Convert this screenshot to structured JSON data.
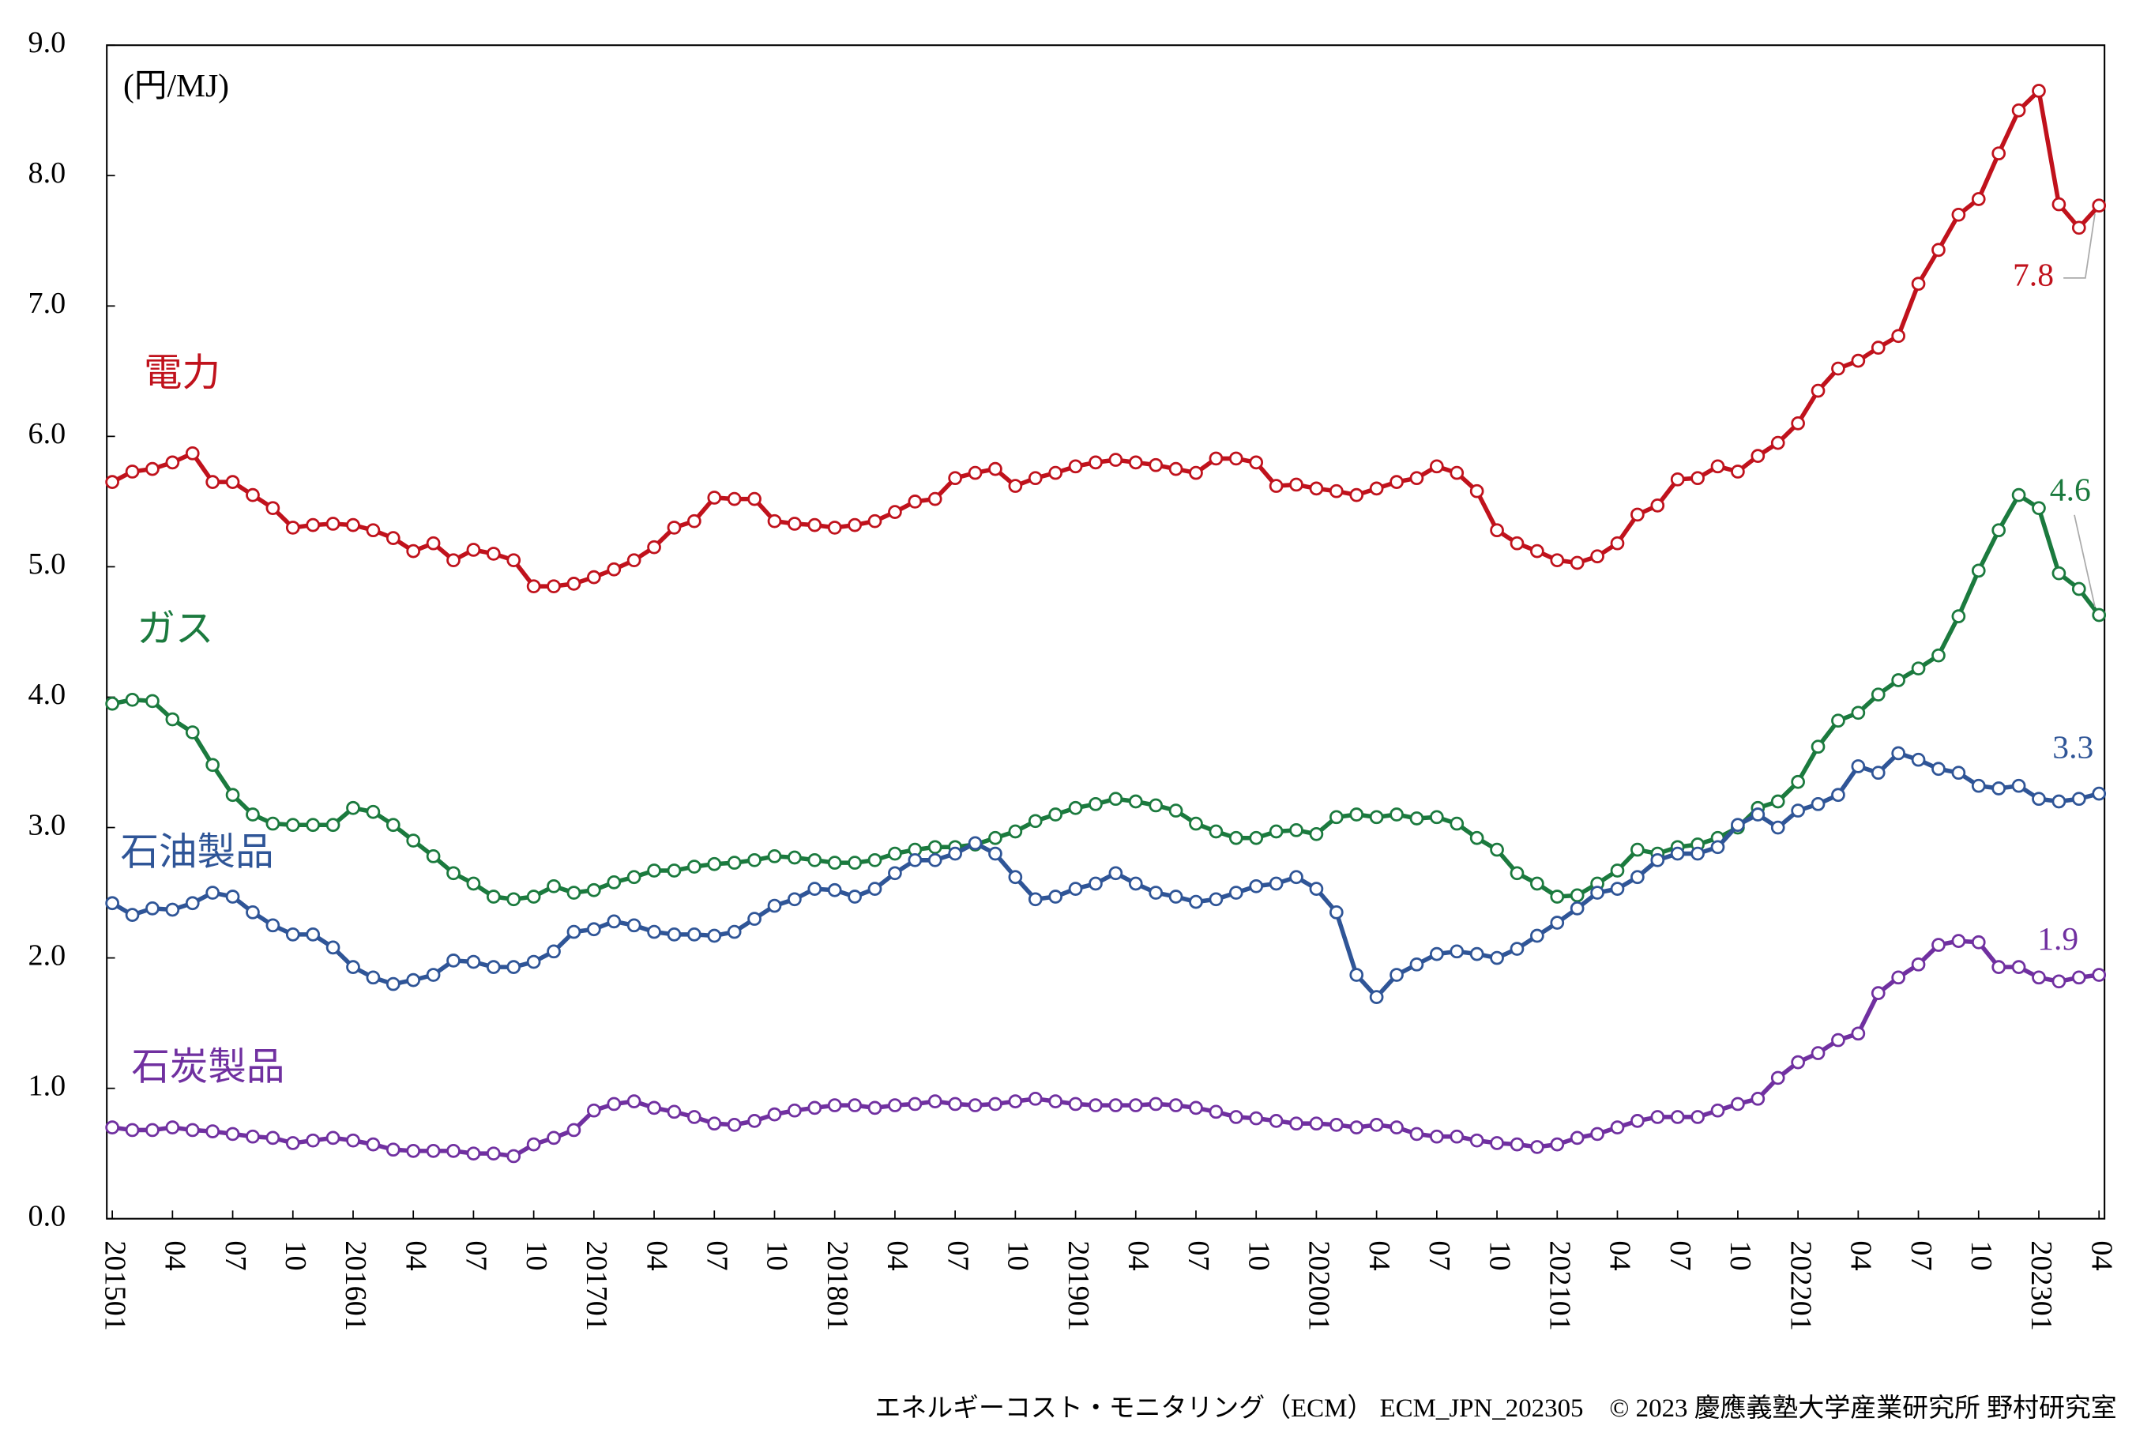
{
  "chart_data": {
    "type": "line",
    "unit_label": "(円/MJ)",
    "source": "エネルギーコスト・モニタリング（ECM） ECM_JPN_202305　© 2023 慶應義塾大学産業研究所 野村研究室",
    "categories": [
      "201501",
      null,
      null,
      "04",
      null,
      null,
      "07",
      null,
      null,
      "10",
      null,
      null,
      "201601",
      null,
      null,
      "04",
      null,
      null,
      "07",
      null,
      null,
      "10",
      null,
      null,
      "201701",
      null,
      null,
      "04",
      null,
      null,
      "07",
      null,
      null,
      "10",
      null,
      null,
      "201801",
      null,
      null,
      "04",
      null,
      null,
      "07",
      null,
      null,
      "10",
      null,
      null,
      "201901",
      null,
      null,
      "04",
      null,
      null,
      "07",
      null,
      null,
      "10",
      null,
      null,
      "202001",
      null,
      null,
      "04",
      null,
      null,
      "07",
      null,
      null,
      "10",
      null,
      null,
      "202101",
      null,
      null,
      "04",
      null,
      null,
      "07",
      null,
      null,
      "10",
      null,
      null,
      "202201",
      null,
      null,
      "04",
      null,
      null,
      "07",
      null,
      null,
      "10",
      null,
      null,
      "202301",
      null,
      null,
      "04"
    ],
    "ylim": [
      0,
      9
    ],
    "yticks": [
      {
        "value": 0,
        "label": "0.0"
      },
      {
        "value": 1,
        "label": "1.0"
      },
      {
        "value": 2,
        "label": "2.0"
      },
      {
        "value": 3,
        "label": "3.0"
      },
      {
        "value": 4,
        "label": "4.0"
      },
      {
        "value": 5,
        "label": "5.0"
      },
      {
        "value": 6,
        "label": "6.0"
      },
      {
        "value": 7,
        "label": "7.0"
      },
      {
        "value": 8,
        "label": "8.0"
      },
      {
        "value": 9,
        "label": "9.0"
      }
    ],
    "grid": false,
    "series": [
      {
        "name": "電力",
        "color": "#c0121c",
        "end_label": "7.8",
        "values": [
          5.65,
          5.73,
          5.75,
          5.8,
          5.87,
          5.65,
          5.65,
          5.55,
          5.45,
          5.3,
          5.32,
          5.33,
          5.32,
          5.28,
          5.22,
          5.12,
          5.18,
          5.05,
          5.13,
          5.1,
          5.05,
          4.85,
          4.85,
          4.87,
          4.92,
          4.98,
          5.05,
          5.15,
          5.3,
          5.35,
          5.53,
          5.52,
          5.52,
          5.35,
          5.33,
          5.32,
          5.3,
          5.32,
          5.35,
          5.42,
          5.5,
          5.52,
          5.68,
          5.72,
          5.75,
          5.62,
          5.68,
          5.72,
          5.77,
          5.8,
          5.82,
          5.8,
          5.78,
          5.75,
          5.72,
          5.83,
          5.83,
          5.8,
          5.62,
          5.63,
          5.6,
          5.58,
          5.55,
          5.6,
          5.65,
          5.68,
          5.77,
          5.72,
          5.58,
          5.28,
          5.18,
          5.12,
          5.05,
          5.03,
          5.08,
          5.18,
          5.4,
          5.47,
          5.67,
          5.68,
          5.77,
          5.73,
          5.85,
          5.95,
          6.1,
          6.35,
          6.52,
          6.58,
          6.68,
          6.77,
          7.17,
          7.43,
          7.7,
          7.82,
          8.17,
          8.5,
          8.65,
          7.78,
          7.6,
          7.77
        ]
      },
      {
        "name": "ガス",
        "color": "#1b7a3e",
        "end_label": "4.6",
        "values": [
          3.95,
          3.98,
          3.97,
          3.83,
          3.73,
          3.48,
          3.25,
          3.1,
          3.03,
          3.02,
          3.02,
          3.02,
          3.15,
          3.12,
          3.02,
          2.9,
          2.78,
          2.65,
          2.57,
          2.47,
          2.45,
          2.47,
          2.55,
          2.5,
          2.52,
          2.58,
          2.62,
          2.67,
          2.67,
          2.7,
          2.72,
          2.73,
          2.75,
          2.78,
          2.77,
          2.75,
          2.73,
          2.73,
          2.75,
          2.8,
          2.83,
          2.85,
          2.85,
          2.87,
          2.92,
          2.97,
          3.05,
          3.1,
          3.15,
          3.18,
          3.22,
          3.2,
          3.17,
          3.13,
          3.03,
          2.97,
          2.92,
          2.92,
          2.97,
          2.98,
          2.95,
          3.08,
          3.1,
          3.08,
          3.1,
          3.07,
          3.08,
          3.03,
          2.92,
          2.83,
          2.65,
          2.57,
          2.47,
          2.48,
          2.57,
          2.67,
          2.83,
          2.8,
          2.85,
          2.87,
          2.92,
          3.0,
          3.15,
          3.2,
          3.35,
          3.62,
          3.82,
          3.88,
          4.02,
          4.13,
          4.22,
          4.32,
          4.62,
          4.97,
          5.28,
          5.55,
          5.45,
          4.95,
          4.83,
          4.63
        ]
      },
      {
        "name": "石油製品",
        "color": "#2f5597",
        "end_label": "3.3",
        "values": [
          2.42,
          2.33,
          2.38,
          2.37,
          2.42,
          2.5,
          2.47,
          2.35,
          2.25,
          2.18,
          2.18,
          2.08,
          1.93,
          1.85,
          1.8,
          1.83,
          1.87,
          1.98,
          1.97,
          1.93,
          1.93,
          1.97,
          2.05,
          2.2,
          2.22,
          2.28,
          2.25,
          2.2,
          2.18,
          2.18,
          2.17,
          2.2,
          2.3,
          2.4,
          2.45,
          2.53,
          2.52,
          2.47,
          2.53,
          2.65,
          2.75,
          2.75,
          2.8,
          2.88,
          2.8,
          2.62,
          2.45,
          2.47,
          2.53,
          2.57,
          2.65,
          2.57,
          2.5,
          2.47,
          2.43,
          2.45,
          2.5,
          2.55,
          2.57,
          2.62,
          2.53,
          2.35,
          1.87,
          1.7,
          1.87,
          1.95,
          2.03,
          2.05,
          2.03,
          2.0,
          2.07,
          2.17,
          2.27,
          2.38,
          2.5,
          2.53,
          2.62,
          2.75,
          2.8,
          2.8,
          2.85,
          3.02,
          3.1,
          3.0,
          3.13,
          3.18,
          3.25,
          3.47,
          3.42,
          3.57,
          3.52,
          3.45,
          3.42,
          3.32,
          3.3,
          3.32,
          3.22,
          3.2,
          3.22,
          3.26
        ]
      },
      {
        "name": "石炭製品",
        "color": "#7030a0",
        "end_label": "1.9",
        "values": [
          0.7,
          0.68,
          0.68,
          0.7,
          0.68,
          0.67,
          0.65,
          0.63,
          0.62,
          0.58,
          0.6,
          0.62,
          0.6,
          0.57,
          0.53,
          0.52,
          0.52,
          0.52,
          0.5,
          0.5,
          0.48,
          0.57,
          0.62,
          0.68,
          0.83,
          0.88,
          0.9,
          0.85,
          0.82,
          0.78,
          0.73,
          0.72,
          0.75,
          0.8,
          0.83,
          0.85,
          0.87,
          0.87,
          0.85,
          0.87,
          0.88,
          0.9,
          0.88,
          0.87,
          0.88,
          0.9,
          0.92,
          0.9,
          0.88,
          0.87,
          0.87,
          0.87,
          0.88,
          0.87,
          0.85,
          0.82,
          0.78,
          0.77,
          0.75,
          0.73,
          0.73,
          0.72,
          0.7,
          0.72,
          0.7,
          0.65,
          0.63,
          0.63,
          0.6,
          0.58,
          0.57,
          0.55,
          0.57,
          0.62,
          0.65,
          0.7,
          0.75,
          0.78,
          0.78,
          0.78,
          0.83,
          0.88,
          0.92,
          1.08,
          1.2,
          1.27,
          1.37,
          1.42,
          1.73,
          1.85,
          1.95,
          2.1,
          2.13,
          2.12,
          1.93,
          1.93,
          1.85,
          1.82,
          1.85,
          1.87
        ]
      }
    ]
  }
}
